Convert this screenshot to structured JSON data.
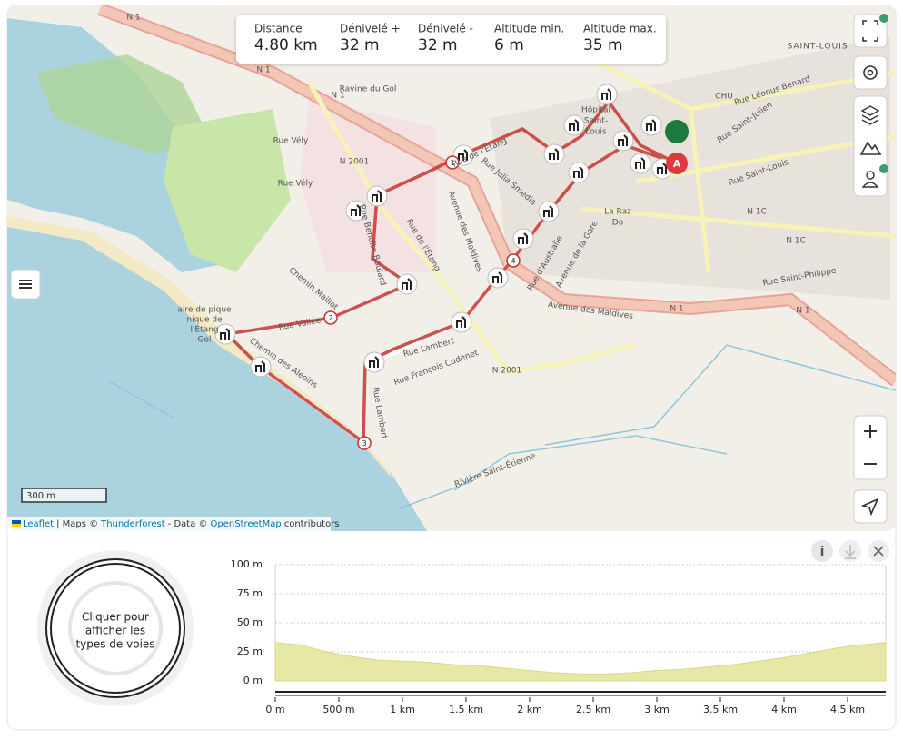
{
  "stats": [
    {
      "label": "Distance",
      "value": "4.80 km"
    },
    {
      "label": "Dénivelé +",
      "value": "32 m"
    },
    {
      "label": "Dénivelé -",
      "value": "32 m"
    },
    {
      "label": "Altitude min.",
      "value": "6 m"
    },
    {
      "label": "Altitude max.",
      "value": "35 m"
    }
  ],
  "map_labels": [
    "N 1",
    "N 1",
    "N 1",
    "N 1",
    "N 1",
    "Rue Vély",
    "Rue Vély",
    "Rue de l'Étang",
    "Rue Julia Smedia",
    "Avenue des Maldives",
    "Avenue des Maldives",
    "Rue Lambert",
    "Rue Lambert",
    "Rue François Cudenet",
    "Chemin des Aleoins",
    "Chemin Maillot",
    "Rue Vallée",
    "Rue Benoîte Boulard",
    "Rue de l'Étang",
    "Avenue de la Gare",
    "Rue d'Australie",
    "N 2001",
    "N 2001",
    "N 1C",
    "N 1C",
    "SAINT-LOUIS",
    "CHU",
    "Rue Léonus Bénard",
    "Rue Saint-Julien",
    "Rue Saint-Louis",
    "Rue Saint-Philippe",
    "aire de pique",
    "nique de",
    "l'Étang",
    "Gol",
    "Ravine du Gol",
    "Rivière Saint-Étienne",
    "La Raz",
    "Do",
    "Hôpital",
    "Saint-",
    "Louis"
  ],
  "route_markers": [
    "1",
    "2",
    "3",
    "4"
  ],
  "start_marker": "A",
  "scale": "300 m",
  "attribution": {
    "leaflet": "Leaflet",
    "maps": "| Maps ©",
    "thunderforest": "Thunderforest",
    "data": "- Data ©",
    "osm": "OpenStreetMap",
    "contributors": "contributors"
  },
  "ring_text": [
    "Cliquer pour",
    "afficher les",
    "types de voies"
  ],
  "chart_data": {
    "type": "area",
    "x": [
      0,
      200,
      400,
      600,
      800,
      1000,
      1200,
      1400,
      1600,
      1800,
      2000,
      2200,
      2400,
      2600,
      2800,
      3000,
      3200,
      3400,
      3600,
      3800,
      4000,
      4200,
      4400,
      4600,
      4800
    ],
    "values": [
      33,
      31,
      25,
      21,
      18,
      17,
      16,
      14,
      13,
      11,
      9,
      7,
      6,
      6,
      7,
      9,
      10,
      12,
      14,
      17,
      20,
      24,
      28,
      31,
      33
    ],
    "color": "#e8e8a6",
    "xlim": [
      0,
      4800
    ],
    "ylim": [
      0,
      100
    ],
    "yticks": [
      {
        "value": 0,
        "label": "0 m"
      },
      {
        "value": 25,
        "label": "25 m"
      },
      {
        "value": 50,
        "label": "50 m"
      },
      {
        "value": 75,
        "label": "75 m"
      },
      {
        "value": 100,
        "label": "100 m"
      }
    ],
    "xticks": [
      {
        "value": 0,
        "label": "0 m"
      },
      {
        "value": 500,
        "label": "500 m"
      },
      {
        "value": 1000,
        "label": "1 km"
      },
      {
        "value": 1500,
        "label": "1.5 km"
      },
      {
        "value": 2000,
        "label": "2 km"
      },
      {
        "value": 2500,
        "label": "2.5 km"
      },
      {
        "value": 3000,
        "label": "3 km"
      },
      {
        "value": 3500,
        "label": "3.5 km"
      },
      {
        "value": 4000,
        "label": "4 km"
      },
      {
        "value": 4500,
        "label": "4.5 km"
      }
    ],
    "grid": true
  }
}
